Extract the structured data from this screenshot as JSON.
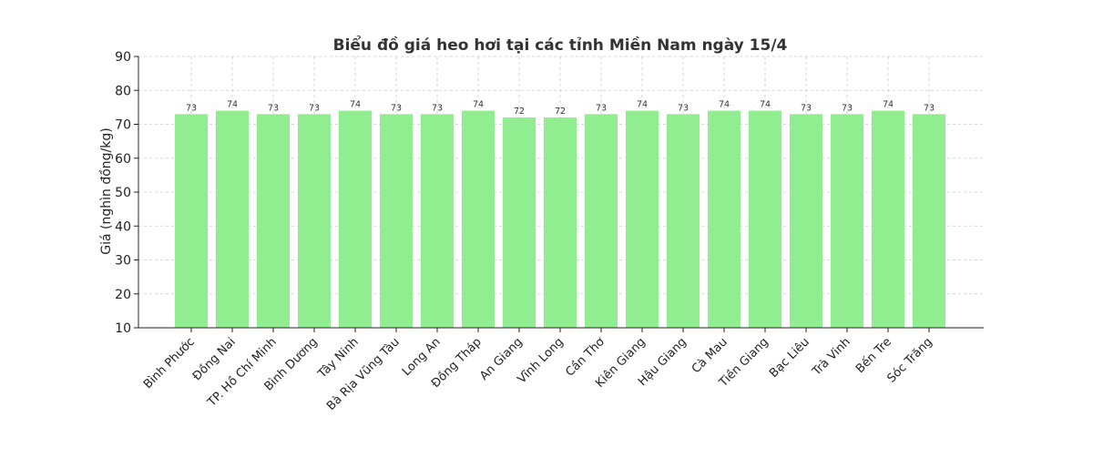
{
  "chart_data": {
    "type": "bar",
    "title": "Biểu đồ giá heo hơi tại các tỉnh Miền Nam ngày 15/4",
    "xlabel": "",
    "ylabel": "Giá (nghìn đồng/kg)",
    "ylim": [
      10,
      90
    ],
    "yticks": [
      10,
      20,
      30,
      40,
      50,
      60,
      70,
      80,
      90
    ],
    "grid": true,
    "bar_color": "#90ee90",
    "categories": [
      "Bình Phước",
      "Đồng Nai",
      "TP. Hồ Chí Minh",
      "Bình Dương",
      "Tây Ninh",
      "Bà Rịa  Vũng Tàu",
      "Long An",
      "Đồng Tháp",
      "An Giang",
      "Vĩnh Long",
      "Cần Thơ",
      "Kiên Giang",
      "Hậu Giang",
      "Cà Mau",
      "Tiền Giang",
      "Bạc Liêu",
      "Trà Vinh",
      "Bến Tre",
      "Sóc Trăng"
    ],
    "values": [
      73,
      74,
      73,
      73,
      74,
      73,
      73,
      74,
      72,
      72,
      73,
      74,
      73,
      74,
      74,
      73,
      73,
      74,
      73
    ]
  }
}
